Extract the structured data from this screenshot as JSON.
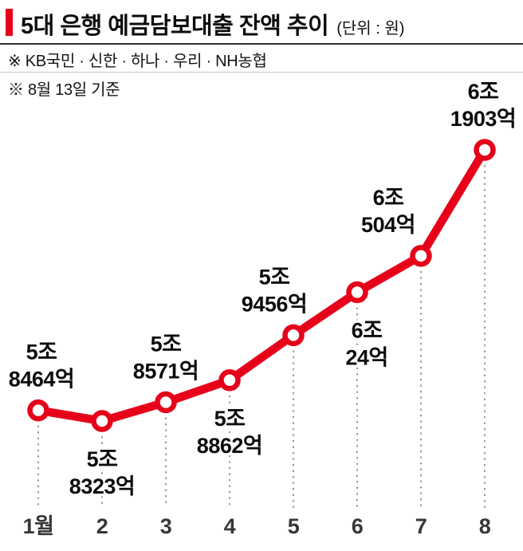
{
  "header": {
    "title": "5대 은행 예금담보대출 잔액 추이",
    "unit": "(단위 : 원)",
    "note_banks": "※ KB국민 · 신한 · 하나 · 우리 · NH농협",
    "note_date": "※ 8월 13일 기준"
  },
  "chart_data": {
    "type": "line",
    "title": "5대 은행 예금담보대출 잔액 추이",
    "unit": "원",
    "x": [
      "1월",
      "2",
      "3",
      "4",
      "5",
      "6",
      "7",
      "8"
    ],
    "values_eok": [
      58464,
      58323,
      58571,
      58862,
      59456,
      60024,
      60504,
      61903
    ],
    "point_labels": [
      [
        "5조",
        "8464억"
      ],
      [
        "5조",
        "8323억"
      ],
      [
        "5조",
        "8571억"
      ],
      [
        "5조",
        "8862억"
      ],
      [
        "5조",
        "9456억"
      ],
      [
        "6조",
        "24억"
      ],
      [
        "6조",
        "504억"
      ],
      [
        "6조",
        "1903억"
      ]
    ],
    "line_color": "#e60019",
    "marker": "open-circle",
    "grid": false,
    "y_axis": "hidden",
    "ylim_eok": [
      58323,
      61903
    ],
    "label_side": [
      "above",
      "below",
      "above",
      "below",
      "above",
      "below",
      "above",
      "above"
    ],
    "label_dx": [
      4,
      0,
      0,
      0,
      -24,
      12,
      -41,
      -2
    ]
  }
}
